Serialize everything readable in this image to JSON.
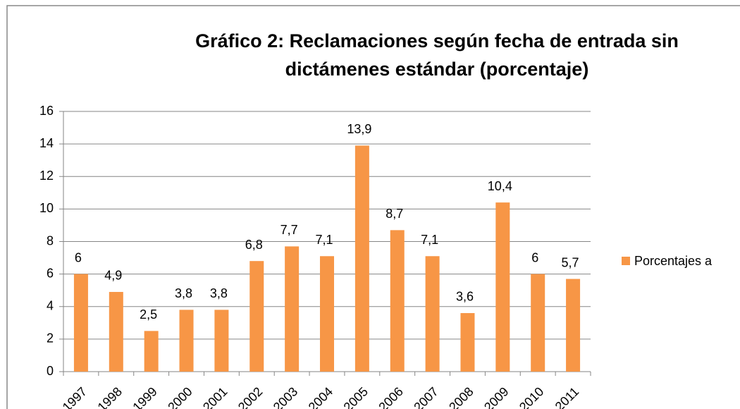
{
  "chart_data": {
    "type": "bar",
    "title": [
      "Gráfico 2:  Reclamaciones  según fecha de entrada sin",
      "dictámenes estándar (porcentaje)"
    ],
    "categories": [
      "1997",
      "1998",
      "1999",
      "2000",
      "2001",
      "2002",
      "2003",
      "2004",
      "2005",
      "2006",
      "2007",
      "2008",
      "2009",
      "2010",
      "2011"
    ],
    "series": [
      {
        "name": "Porcentajes a",
        "color": "#f79646",
        "values": [
          6,
          4.9,
          2.5,
          3.8,
          3.8,
          6.8,
          7.7,
          7.1,
          13.9,
          8.7,
          7.1,
          3.6,
          10.4,
          6,
          5.7
        ],
        "value_labels": [
          "6",
          "4,9",
          "2,5",
          "3,8",
          "3,8",
          "6,8",
          "7,7",
          "7,1",
          "13,9",
          "8,7",
          "7,1",
          "3,6",
          "10,4",
          "6",
          "5,7"
        ]
      }
    ],
    "ylim": [
      0,
      16
    ],
    "yticks": [
      0,
      2,
      4,
      6,
      8,
      10,
      12,
      14,
      16
    ],
    "grid": true,
    "legend": "right"
  }
}
